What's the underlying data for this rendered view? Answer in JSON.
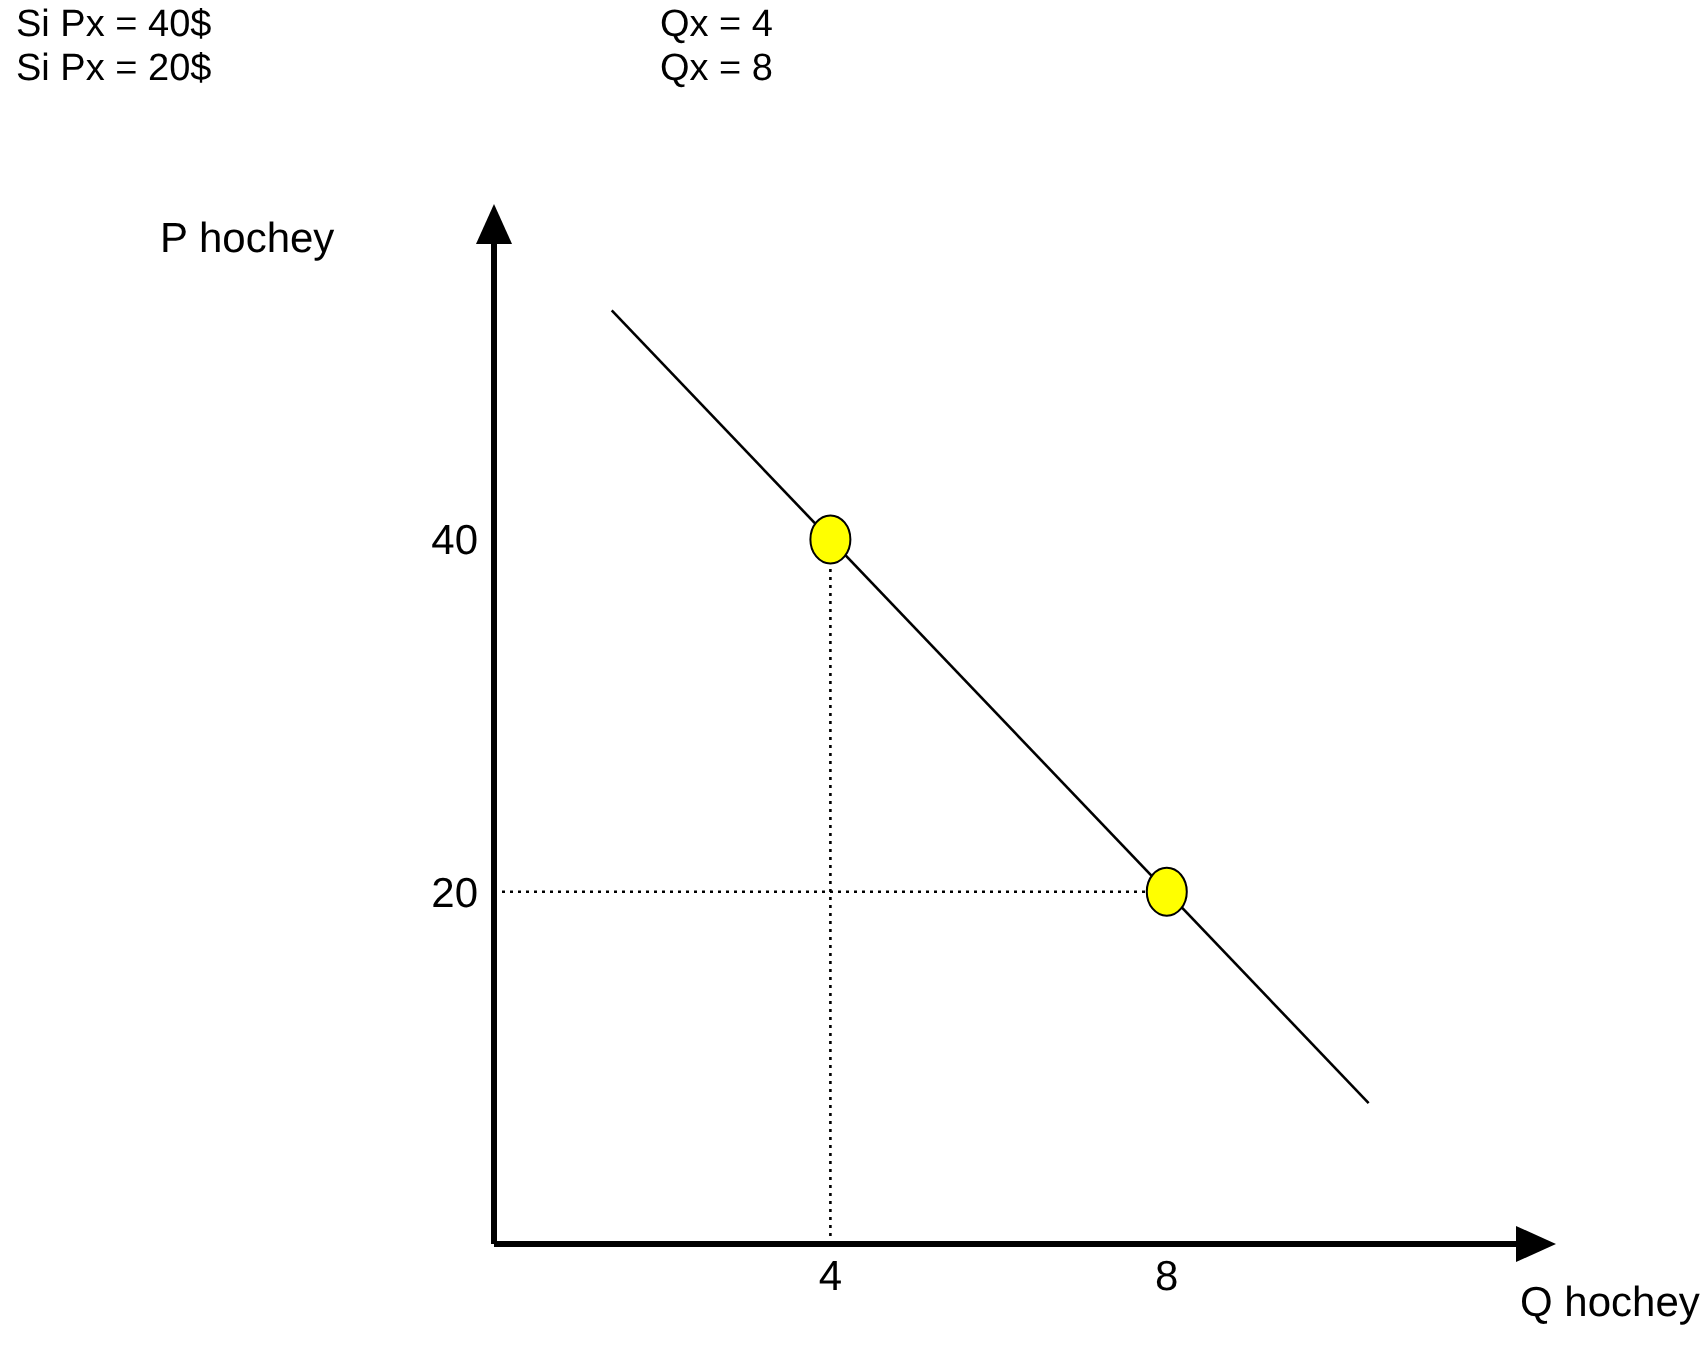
{
  "chart_data": {
    "type": "line",
    "xlabel": "Q hochey",
    "ylabel": "P hochey",
    "annotations": [
      "Si Px = 40$",
      "Qx = 4",
      "Si Px = 20$",
      "Qx = 8"
    ],
    "xlim": [
      0,
      12.2
    ],
    "ylim": [
      0,
      57
    ],
    "xticks": [
      4,
      8
    ],
    "yticks": [
      20,
      40
    ],
    "series": [
      {
        "color": "#000000",
        "x": [
          1.4,
          10.4
        ],
        "values": [
          53,
          8
        ],
        "marker": "none",
        "line_style": "solid"
      },
      {
        "color": "#000000",
        "x": [
          4,
          4
        ],
        "values": [
          0,
          40
        ],
        "marker": "none",
        "line_style": "dotted"
      },
      {
        "color": "#000000",
        "x": [
          0,
          8
        ],
        "values": [
          20,
          20
        ],
        "marker": "none",
        "line_style": "dotted"
      },
      {
        "type": "scatter",
        "color": "#ffff00",
        "x": [
          4,
          8
        ],
        "values": [
          40,
          20
        ],
        "marker": "circle"
      }
    ]
  }
}
